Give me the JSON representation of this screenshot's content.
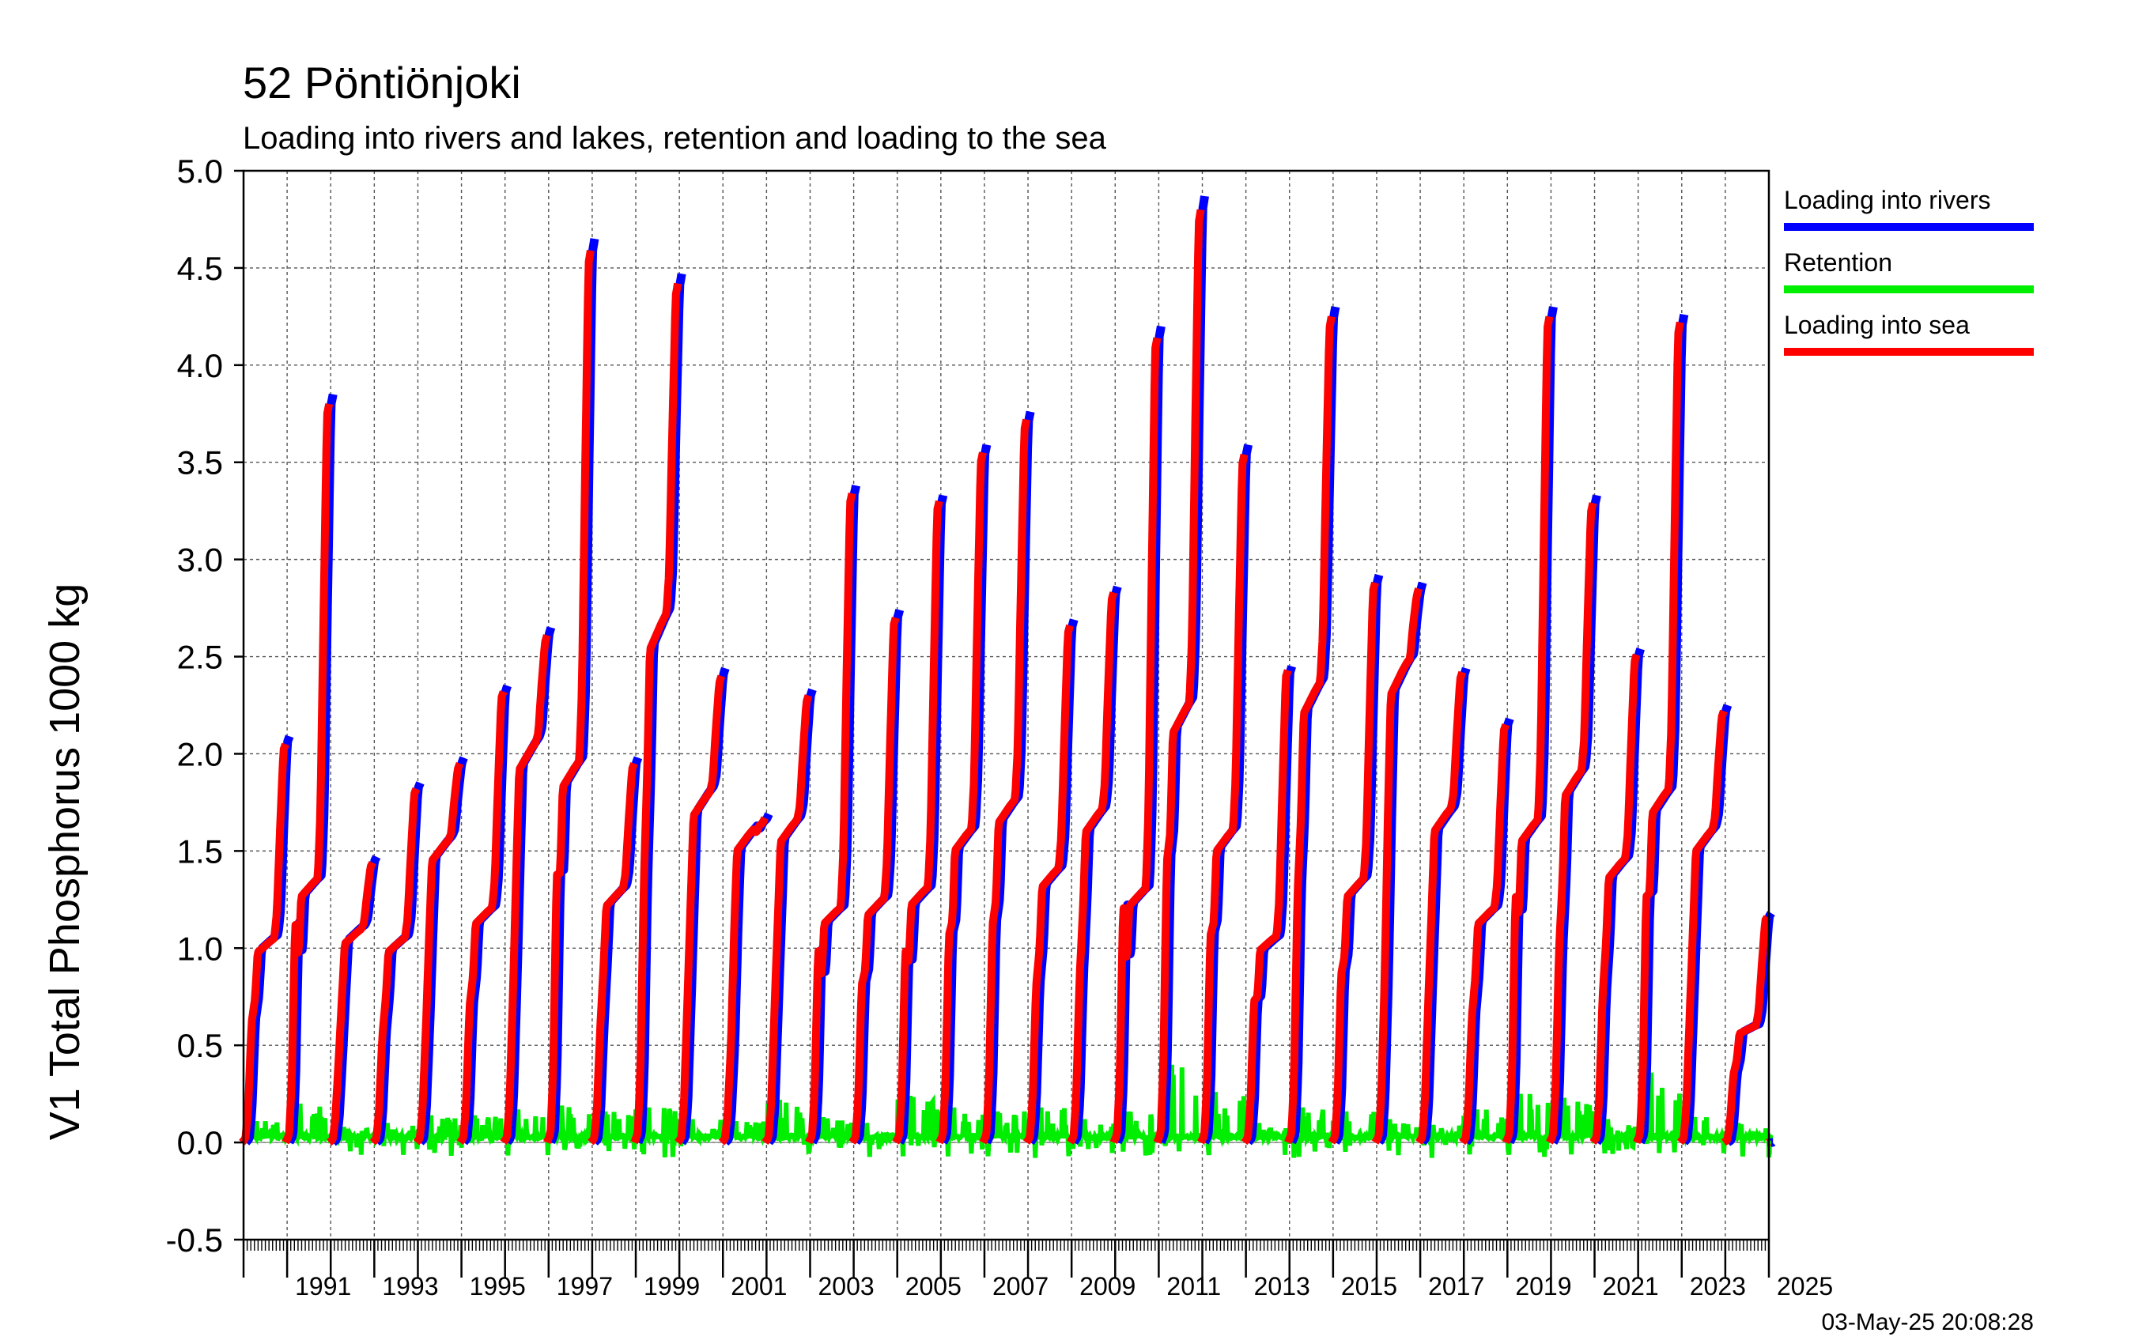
{
  "chart_data": {
    "type": "line",
    "title": "52 Pöntiönjoki",
    "subtitle": "Loading into rivers and lakes, retention and loading to the sea",
    "ylabel": "V1 Total Phosphorus 1000 kg",
    "xlabel": "",
    "ylim": [
      -0.5,
      5.0
    ],
    "xlim": [
      1990,
      2025
    ],
    "yticks": [
      -0.5,
      0.0,
      0.5,
      1.0,
      1.5,
      2.0,
      2.5,
      3.0,
      3.5,
      4.0,
      4.5,
      5.0
    ],
    "ytick_labels": [
      "-0.5",
      "0.0",
      "0.5",
      "1.0",
      "1.5",
      "2.0",
      "2.5",
      "3.0",
      "3.5",
      "4.0",
      "4.5",
      "5.0"
    ],
    "xtick_labels": [
      "1991",
      "1993",
      "1995",
      "1997",
      "1999",
      "2001",
      "2003",
      "2005",
      "2007",
      "2009",
      "2011",
      "2013",
      "2015",
      "2017",
      "2019",
      "2021",
      "2023",
      "2025"
    ],
    "grid": true,
    "legend_position": "right",
    "timestamp": "03-May-25 20:08:28",
    "years": [
      1990,
      1991,
      1992,
      1993,
      1994,
      1995,
      1996,
      1997,
      1998,
      1999,
      2000,
      2001,
      2002,
      2003,
      2004,
      2005,
      2006,
      2007,
      2008,
      2009,
      2010,
      2011,
      2012,
      2013,
      2014,
      2015,
      2016,
      2017,
      2018,
      2019,
      2020,
      2021,
      2022,
      2023,
      2024,
      2025
    ],
    "series": [
      {
        "name": "Loading into rivers",
        "color": "#0000ff",
        "annual_totals": [
          2.09,
          3.85,
          1.47,
          1.85,
          1.98,
          2.35,
          2.65,
          4.65,
          1.98,
          4.47,
          2.44,
          1.69,
          2.33,
          3.38,
          2.74,
          3.33,
          3.59,
          3.76,
          2.69,
          2.86,
          4.2,
          4.87,
          3.59,
          2.45,
          4.3,
          2.92,
          2.88,
          2.44,
          2.18,
          4.3,
          3.33,
          2.54,
          4.26,
          2.25,
          1.18,
          0.05
        ],
        "mid_year_levels": [
          1.05,
          1.35,
          1.1,
          1.05,
          1.55,
          1.2,
          2.05,
          1.95,
          1.3,
          2.7,
          1.8,
          1.6,
          1.65,
          1.2,
          1.25,
          1.3,
          1.6,
          1.75,
          1.4,
          1.7,
          1.3,
          2.25,
          1.6,
          1.05,
          2.35,
          1.35,
          2.45,
          1.7,
          1.2,
          1.65,
          1.9,
          1.45,
          1.8,
          1.6,
          0.6,
          0.0
        ]
      },
      {
        "name": "Retention",
        "color": "#00ee00",
        "annual_peaks": [
          0.11,
          0.2,
          0.08,
          0.1,
          0.14,
          0.14,
          0.17,
          0.19,
          0.16,
          0.18,
          0.12,
          0.11,
          0.22,
          0.13,
          0.1,
          0.24,
          0.18,
          0.16,
          0.18,
          0.12,
          0.16,
          0.4,
          0.26,
          0.1,
          0.18,
          0.16,
          0.12,
          0.09,
          0.17,
          0.25,
          0.23,
          0.12,
          0.36,
          0.13,
          0.1,
          0.02
        ],
        "annual_minimum": -0.08
      },
      {
        "name": "Loading into sea",
        "color": "#ff0000",
        "annual_totals": [
          2.05,
          3.8,
          1.44,
          1.82,
          1.95,
          2.32,
          2.61,
          4.59,
          1.95,
          4.42,
          2.4,
          1.67,
          2.3,
          3.34,
          2.7,
          3.3,
          3.55,
          3.72,
          2.66,
          2.83,
          4.14,
          4.8,
          3.54,
          2.43,
          4.25,
          2.88,
          2.85,
          2.42,
          2.15,
          4.25,
          3.29,
          2.51,
          4.22,
          2.22,
          1.16,
          0.05
        ]
      }
    ]
  }
}
